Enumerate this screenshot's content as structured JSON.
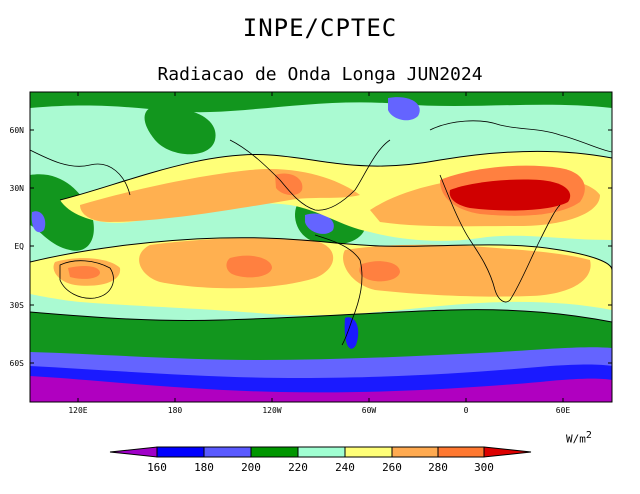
{
  "header": {
    "organization": "INPE/CPTEC",
    "title": "Radiacao de Onda Longa JUN2024"
  },
  "axes": {
    "x_ticks": [
      "120E",
      "180",
      "120W",
      "60W",
      "0",
      "60E"
    ],
    "y_ticks": [
      "60N",
      "30N",
      "EQ",
      "30S",
      "60S"
    ]
  },
  "legend": {
    "units_base": "W/m",
    "units_exp": "2",
    "levels": [
      "160",
      "180",
      "200",
      "220",
      "240",
      "260",
      "280",
      "300"
    ],
    "colors": [
      "#a000c8",
      "#0000ff",
      "#5a5aff",
      "#009600",
      "#a0ffd2",
      "#ffff78",
      "#ffaa50",
      "#ff7830",
      "#dc0000"
    ]
  },
  "field_colors": {
    "violet": "#b000c0",
    "blue": "#1a1aff",
    "lightblue": "#6464ff",
    "green": "#12961e",
    "mint": "#aafad2",
    "yellow": "#ffff78",
    "lightorange": "#ffb050",
    "orange": "#ff8040",
    "red": "#d00000"
  }
}
